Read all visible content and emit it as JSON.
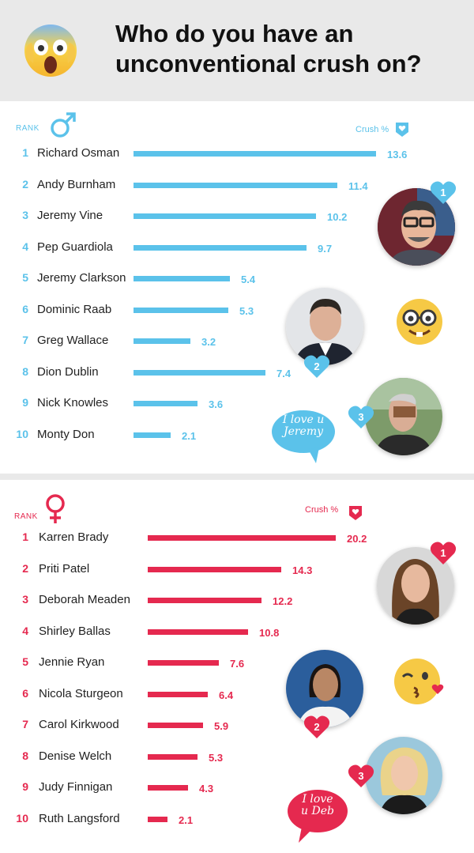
{
  "header": {
    "title_line1": "Who do you have an",
    "title_line2": "unconventional crush on?",
    "emoji": "screaming-face-emoji"
  },
  "colors": {
    "male": "#5bc2ea",
    "female": "#e5294f",
    "header_bg": "#e9e9e9"
  },
  "male": {
    "rank_label": "RANK",
    "crush_label": "Crush %",
    "bubble_text_line1": "I love u",
    "bubble_text_line2": "Jeremy",
    "badges": [
      "1",
      "2",
      "3"
    ],
    "side_emoji": "nerd-face-emoji"
  },
  "female": {
    "rank_label": "RANK",
    "crush_label": "Crush %",
    "bubble_text_line1": "I love",
    "bubble_text_line2": "u Deb",
    "badges": [
      "1",
      "2",
      "3"
    ],
    "side_emoji": "kissing-face-emoji"
  },
  "chart_data": [
    {
      "type": "bar",
      "title": "",
      "xlabel": "Crush %",
      "ylabel": "RANK",
      "ranks": [
        "1",
        "2",
        "3",
        "4",
        "5",
        "6",
        "7",
        "8",
        "9",
        "10"
      ],
      "categories": [
        "Richard Osman",
        "Andy Burnham",
        "Jeremy Vine",
        "Pep Guardiola",
        "Jeremy Clarkson",
        "Dominic Raab",
        "Greg Wallace",
        "Dion Dublin",
        "Nick Knowles",
        "Monty Don"
      ],
      "values": [
        13.6,
        11.4,
        10.2,
        9.7,
        5.4,
        5.3,
        3.2,
        7.4,
        3.6,
        2.1
      ],
      "value_labels": [
        "13.6",
        "11.4",
        "10.2",
        "9.7",
        "5.4",
        "5.3",
        "3.2",
        "7.4",
        "3.6",
        "2.1"
      ],
      "grid": false,
      "legend": "none"
    },
    {
      "type": "bar",
      "title": "",
      "xlabel": "Crush %",
      "ylabel": "RANK",
      "ranks": [
        "1",
        "2",
        "3",
        "4",
        "5",
        "6",
        "7",
        "8",
        "9",
        "10"
      ],
      "categories": [
        "Karren Brady",
        "Priti Patel",
        "Deborah Meaden",
        "Shirley Ballas",
        "Jennie Ryan",
        "Nicola Sturgeon",
        "Carol Kirkwood",
        "Denise Welch",
        "Judy Finnigan",
        "Ruth Langsford"
      ],
      "values": [
        20.2,
        14.3,
        12.2,
        10.8,
        7.6,
        6.4,
        5.9,
        5.3,
        4.3,
        2.1
      ],
      "value_labels": [
        "20.2",
        "14.3",
        "12.2",
        "10.8",
        "7.6",
        "6.4",
        "5.9",
        "5.3",
        "4.3",
        "2.1"
      ],
      "grid": false,
      "legend": "none"
    }
  ]
}
